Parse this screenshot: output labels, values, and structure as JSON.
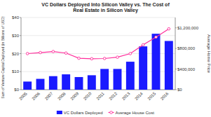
{
  "chart_data": {
    "type": "bar",
    "title": "VC Dollars Deployed Into Silicon Valley vs. The Cost of\nReal Estate in Silicon Valley",
    "categories": [
      "2005",
      "2006",
      "2007",
      "2008",
      "2009",
      "2010",
      "2011",
      "2012",
      "2013",
      "2014",
      "2015",
      "2016"
    ],
    "series": [
      {
        "name": "VC Dollars Deployed",
        "type": "bar",
        "color": "#1a1aff",
        "values": [
          4.5,
          6.0,
          7.5,
          8.5,
          7.0,
          8.0,
          11.5,
          11.5,
          15.5,
          24.0,
          31.0,
          27.0
        ]
      },
      {
        "name": "Average House Cost",
        "type": "line",
        "axis": "y2",
        "color": "#ff2d9b",
        "marker": "circle",
        "values": [
          700000,
          720000,
          740000,
          710000,
          610000,
          600000,
          605000,
          630000,
          700000,
          870000,
          1020000,
          1180000
        ]
      }
    ],
    "ylabel": "Sum of Venture Capital Deployed (in Billions of USD)",
    "y2label": "Average Home Price",
    "ylim": [
      0,
      40
    ],
    "yticks": [
      {
        "value": 0,
        "label": "$0"
      },
      {
        "value": 10,
        "label": "$10"
      },
      {
        "value": 20,
        "label": "$20"
      },
      {
        "value": 30,
        "label": "$30"
      },
      {
        "value": 40,
        "label": "$40"
      }
    ],
    "y2lim": [
      0,
      1400000
    ],
    "y2ticks": [
      {
        "value": 0,
        "label": "$0"
      },
      {
        "value": 400000,
        "label": "$400,000"
      },
      {
        "value": 800000,
        "label": "$800,000"
      },
      {
        "value": 1200000,
        "label": "$1,200,000"
      }
    ],
    "grid": true,
    "legend": "bottom"
  }
}
